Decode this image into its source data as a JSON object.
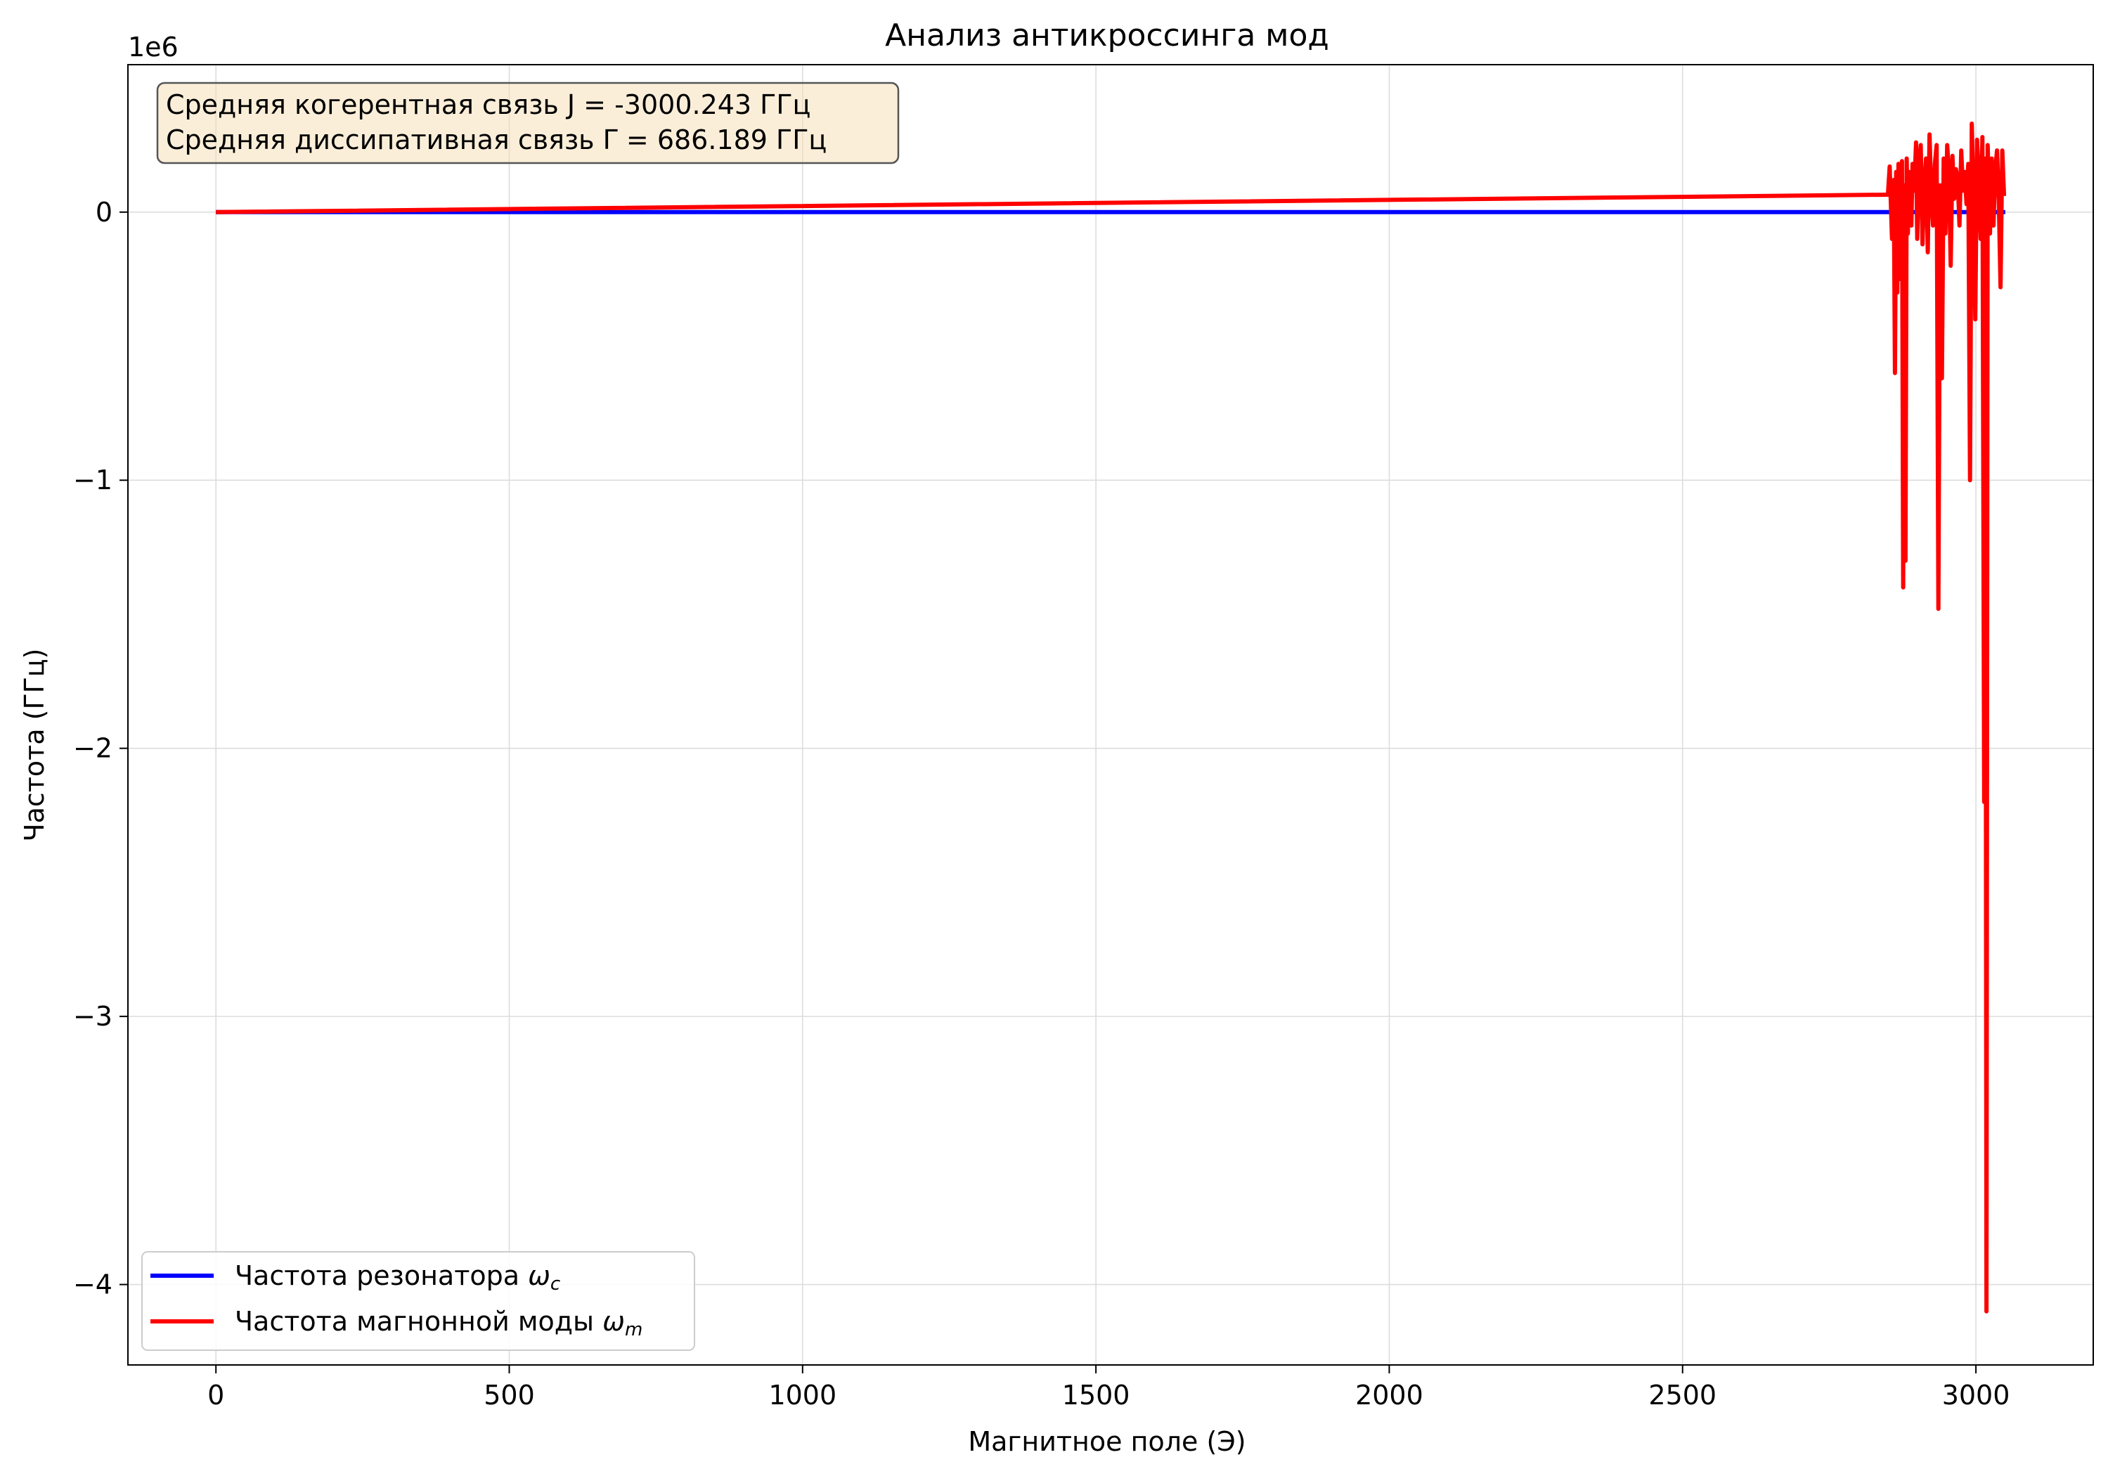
{
  "chart_data": {
    "type": "line",
    "title": "Анализ антикроссинга мод",
    "xlabel": "Магнитное поле (Э)",
    "ylabel": "Частота (ГГц)",
    "y_offset_text": "1e6",
    "y_scale_factor": 1000000,
    "xlim": [
      -150,
      3200
    ],
    "ylim": [
      -4300000,
      550000
    ],
    "x_ticks": [
      0,
      500,
      1000,
      1500,
      2000,
      2500,
      3000
    ],
    "x_tick_labels": [
      "0",
      "500",
      "1000",
      "1500",
      "2000",
      "2500",
      "3000"
    ],
    "y_ticks": [
      0,
      -1000000,
      -2000000,
      -3000000,
      -4000000
    ],
    "y_tick_labels": [
      "0",
      "−1",
      "−2",
      "−3",
      "−4"
    ],
    "grid": true,
    "legend_position": "lower-left",
    "annotation": {
      "lines": [
        "Средняя когерентная связь J = -3000.243 ГГц",
        "Средняя диссипативная связь Γ = 686.189 ГГц"
      ]
    },
    "series": [
      {
        "name": "Частота резонатора ωc",
        "legend_base": "Частота резонатора ",
        "legend_symbol": "ω",
        "legend_sub": "c",
        "color": "#0000ff",
        "x": [
          0,
          3050
        ],
        "y": [
          0,
          0
        ]
      },
      {
        "name": "Частота магнонной моды ωm",
        "legend_base": "Частота магнонной моды ",
        "legend_symbol": "ω",
        "legend_sub": "m",
        "color": "#ff0000",
        "x": [
          0,
          2850,
          2853,
          2857,
          2860,
          2862,
          2864,
          2866,
          2868,
          2870,
          2872,
          2874,
          2876,
          2878,
          2880,
          2882,
          2884,
          2886,
          2888,
          2890,
          2892,
          2895,
          2898,
          2900,
          2903,
          2906,
          2909,
          2912,
          2915,
          2918,
          2921,
          2924,
          2927,
          2930,
          2933,
          2936,
          2939,
          2942,
          2945,
          2948,
          2951,
          2954,
          2957,
          2960,
          2963,
          2966,
          2969,
          2972,
          2975,
          2978,
          2981,
          2984,
          2987,
          2990,
          2993,
          2996,
          2999,
          3002,
          3005,
          3008,
          3011,
          3014,
          3016,
          3018,
          3020,
          3022,
          3024,
          3027,
          3030,
          3033,
          3036,
          3039,
          3042,
          3045,
          3048
        ],
        "y": [
          0,
          65000,
          170000,
          -100000,
          120000,
          -600000,
          150000,
          -300000,
          180000,
          50000,
          -250000,
          190000,
          -1400000,
          100000,
          -1300000,
          200000,
          -80000,
          150000,
          30000,
          -50000,
          180000,
          80000,
          260000,
          -100000,
          180000,
          250000,
          -120000,
          100000,
          200000,
          -150000,
          290000,
          60000,
          -50000,
          180000,
          250000,
          -1480000,
          100000,
          -620000,
          200000,
          -80000,
          250000,
          150000,
          -200000,
          210000,
          50000,
          160000,
          120000,
          -50000,
          230000,
          80000,
          150000,
          30000,
          180000,
          -1000000,
          330000,
          50000,
          -400000,
          270000,
          130000,
          -100000,
          280000,
          -2200000,
          200000,
          -4100000,
          250000,
          100000,
          -80000,
          200000,
          -50000,
          160000,
          230000,
          50000,
          -280000,
          230000,
          60000
        ]
      }
    ]
  }
}
